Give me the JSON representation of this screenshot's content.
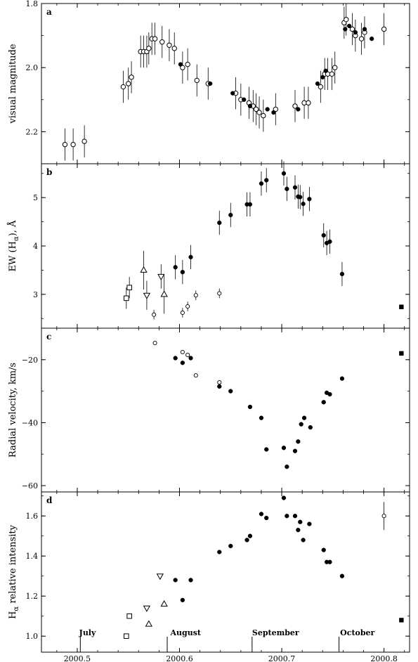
{
  "chart_data": [
    {
      "type": "scatter",
      "panel": "a",
      "ylabel": "visual magnitude",
      "ylim": [
        2.3,
        1.8
      ],
      "y_inverted": true,
      "yticks": [
        {
          "v": 1.8,
          "label": "1.8"
        },
        {
          "v": 2.0,
          "label": "2.0"
        },
        {
          "v": 2.2,
          "label": "2.2"
        }
      ],
      "series": [
        {
          "marker": "open-circle",
          "points": [
            [
              2000.488,
              2.24,
              0.05
            ],
            [
              2000.496,
              2.24,
              0.05
            ],
            [
              2000.507,
              2.23,
              0.05
            ],
            [
              2000.545,
              2.06,
              0.05
            ],
            [
              2000.55,
              2.05,
              0.05
            ],
            [
              2000.553,
              2.03,
              0.05
            ],
            [
              2000.562,
              1.95,
              0.05
            ],
            [
              2000.565,
              1.95,
              0.05
            ],
            [
              2000.568,
              1.95,
              0.05
            ],
            [
              2000.57,
              1.94,
              0.05
            ],
            [
              2000.573,
              1.91,
              0.05
            ],
            [
              2000.576,
              1.91,
              0.05
            ],
            [
              2000.583,
              1.92,
              0.05
            ],
            [
              2000.59,
              1.93,
              0.05
            ],
            [
              2000.595,
              1.94,
              0.05
            ],
            [
              2000.603,
              2.0,
              0.05
            ],
            [
              2000.608,
              1.99,
              0.05
            ],
            [
              2000.617,
              2.04,
              0.05
            ],
            [
              2000.628,
              2.05,
              0.05
            ],
            [
              2000.655,
              2.08,
              0.05
            ],
            [
              2000.66,
              2.1,
              0.05
            ],
            [
              2000.668,
              2.11,
              0.05
            ],
            [
              2000.672,
              2.12,
              0.05
            ],
            [
              2000.675,
              2.13,
              0.05
            ],
            [
              2000.678,
              2.14,
              0.05
            ],
            [
              2000.682,
              2.15,
              0.05
            ],
            [
              2000.694,
              2.13,
              0.05
            ],
            [
              2000.713,
              2.12,
              0.05
            ],
            [
              2000.722,
              2.11,
              0.05
            ],
            [
              2000.726,
              2.11,
              0.05
            ],
            [
              2000.738,
              2.06,
              0.05
            ],
            [
              2000.742,
              2.02,
              0.05
            ],
            [
              2000.745,
              2.02,
              0.05
            ],
            [
              2000.749,
              2.02,
              0.05
            ],
            [
              2000.752,
              2.0,
              0.05
            ],
            [
              2000.761,
              1.86,
              0.05
            ],
            [
              2000.763,
              1.85,
              0.05
            ],
            [
              2000.769,
              1.88,
              0.05
            ],
            [
              2000.772,
              1.9,
              0.05
            ],
            [
              2000.778,
              1.91,
              0.05
            ],
            [
              2000.781,
              1.89,
              0.05
            ],
            [
              2000.8,
              1.88,
              0.05
            ]
          ]
        },
        {
          "marker": "filled-circle",
          "points": [
            [
              2000.601,
              1.99
            ],
            [
              2000.63,
              2.05
            ],
            [
              2000.652,
              2.08
            ],
            [
              2000.663,
              2.1
            ],
            [
              2000.669,
              2.12
            ],
            [
              2000.686,
              2.13
            ],
            [
              2000.692,
              2.14
            ],
            [
              2000.716,
              2.13
            ],
            [
              2000.735,
              2.05
            ],
            [
              2000.74,
              2.03
            ],
            [
              2000.743,
              2.01
            ],
            [
              2000.762,
              1.88
            ],
            [
              2000.766,
              1.87
            ],
            [
              2000.772,
              1.89
            ],
            [
              2000.781,
              1.88
            ],
            [
              2000.788,
              1.91
            ]
          ]
        }
      ]
    },
    {
      "type": "scatter",
      "panel": "b",
      "ylabel": "EW (H",
      "ylabel_sub": "α",
      "ylabel_tail": "), Å",
      "ylim": [
        2.3,
        5.7
      ],
      "yticks": [
        {
          "v": 3,
          "label": "3"
        },
        {
          "v": 4,
          "label": "4"
        },
        {
          "v": 5,
          "label": "5"
        }
      ],
      "series": [
        {
          "marker": "open-square",
          "points": [
            [
              2000.548,
              2.92,
              0.22
            ],
            [
              2000.551,
              3.14,
              0.22
            ]
          ]
        },
        {
          "marker": "open-triangle-up",
          "points": [
            [
              2000.565,
              3.5,
              0.4
            ],
            [
              2000.585,
              3.0,
              0.4
            ]
          ]
        },
        {
          "marker": "open-triangle-down",
          "points": [
            [
              2000.568,
              2.98,
              0.3
            ],
            [
              2000.582,
              3.37,
              0.25
            ]
          ]
        },
        {
          "marker": "small-open-circle",
          "points": [
            [
              2000.575,
              2.58,
              0.1
            ],
            [
              2000.603,
              2.62,
              0.1
            ],
            [
              2000.608,
              2.75,
              0.1
            ],
            [
              2000.616,
              2.98,
              0.1
            ],
            [
              2000.639,
              3.02,
              0.1
            ]
          ]
        },
        {
          "marker": "filled-circle",
          "points": [
            [
              2000.596,
              3.56,
              0.25
            ],
            [
              2000.603,
              3.46,
              0.25
            ],
            [
              2000.611,
              3.77,
              0.25
            ],
            [
              2000.639,
              4.48,
              0.25
            ],
            [
              2000.65,
              4.64,
              0.25
            ],
            [
              2000.666,
              4.86,
              0.25
            ],
            [
              2000.669,
              4.86,
              0.25
            ],
            [
              2000.68,
              5.29,
              0.25
            ],
            [
              2000.685,
              5.36,
              0.25
            ],
            [
              2000.702,
              5.5,
              0.25
            ],
            [
              2000.705,
              5.18,
              0.25
            ],
            [
              2000.713,
              5.21,
              0.25
            ],
            [
              2000.716,
              5.02,
              0.25
            ],
            [
              2000.718,
              5.01,
              0.25
            ],
            [
              2000.721,
              4.87,
              0.25
            ],
            [
              2000.727,
              4.97,
              0.25
            ],
            [
              2000.741,
              4.22,
              0.25
            ],
            [
              2000.744,
              4.06,
              0.25
            ],
            [
              2000.747,
              4.09,
              0.25
            ],
            [
              2000.759,
              3.42,
              0.25
            ]
          ]
        },
        {
          "marker": "filled-square",
          "points": [
            [
              2000.817,
              2.74
            ]
          ]
        }
      ]
    },
    {
      "type": "scatter",
      "panel": "c",
      "ylabel": "Radial velocity, km/s",
      "ylim": [
        -62,
        -10
      ],
      "yticks": [
        {
          "v": -20,
          "label": "−20"
        },
        {
          "v": -40,
          "label": "−40"
        },
        {
          "v": -60,
          "label": "−60"
        }
      ],
      "series": [
        {
          "marker": "small-open-circle",
          "points": [
            [
              2000.576,
              -14.7
            ],
            [
              2000.603,
              -17.6
            ],
            [
              2000.608,
              -18.5
            ],
            [
              2000.616,
              -25.0
            ],
            [
              2000.639,
              -27.2
            ]
          ]
        },
        {
          "marker": "filled-circle",
          "points": [
            [
              2000.596,
              -19.5
            ],
            [
              2000.603,
              -21.0
            ],
            [
              2000.611,
              -19.5
            ],
            [
              2000.639,
              -28.5
            ],
            [
              2000.65,
              -30.0
            ],
            [
              2000.669,
              -35.0
            ],
            [
              2000.68,
              -38.5
            ],
            [
              2000.685,
              -48.5
            ],
            [
              2000.702,
              -48.0
            ],
            [
              2000.705,
              -54.0
            ],
            [
              2000.713,
              -49.0
            ],
            [
              2000.716,
              -46.0
            ],
            [
              2000.719,
              -40.5
            ],
            [
              2000.722,
              -38.5
            ],
            [
              2000.728,
              -41.5
            ],
            [
              2000.741,
              -33.5
            ],
            [
              2000.744,
              -30.5
            ],
            [
              2000.747,
              -31.0
            ],
            [
              2000.759,
              -26.0
            ]
          ]
        },
        {
          "marker": "filled-square",
          "points": [
            [
              2000.817,
              -18.0
            ]
          ]
        }
      ]
    },
    {
      "type": "scatter",
      "panel": "d",
      "ylabel": "H",
      "ylabel_sub": "α",
      "ylabel_tail": " relative intensity",
      "ylim": [
        0.92,
        1.72
      ],
      "yticks": [
        {
          "v": 1.0,
          "label": "1.0"
        },
        {
          "v": 1.2,
          "label": "1.2"
        },
        {
          "v": 1.4,
          "label": "1.4"
        },
        {
          "v": 1.6,
          "label": "1.6"
        }
      ],
      "xlim": [
        2000.465,
        2000.825
      ],
      "xticks": [
        {
          "v": 2000.5,
          "label": "2000.5"
        },
        {
          "v": 2000.6,
          "label": "2000.6"
        },
        {
          "v": 2000.7,
          "label": "2000.7"
        },
        {
          "v": 2000.8,
          "label": "2000.8"
        }
      ],
      "month_markers": [
        {
          "label": "July",
          "line": 2000.503,
          "text_x": 2000.51
        },
        {
          "label": "August",
          "line": 2000.588,
          "text_x": 2000.606
        },
        {
          "label": "September",
          "line": 2000.671,
          "text_x": 2000.694
        },
        {
          "label": "October",
          "line": 2000.756,
          "text_x": 2000.774
        }
      ],
      "series": [
        {
          "marker": "open-square",
          "points": [
            [
              2000.548,
              1.0
            ],
            [
              2000.551,
              1.1
            ]
          ]
        },
        {
          "marker": "open-triangle-up",
          "points": [
            [
              2000.57,
              1.06
            ],
            [
              2000.585,
              1.16
            ]
          ]
        },
        {
          "marker": "open-triangle-down",
          "points": [
            [
              2000.568,
              1.14
            ],
            [
              2000.581,
              1.3
            ]
          ]
        },
        {
          "marker": "filled-circle",
          "points": [
            [
              2000.596,
              1.28
            ],
            [
              2000.603,
              1.18
            ],
            [
              2000.611,
              1.28
            ],
            [
              2000.639,
              1.42
            ],
            [
              2000.65,
              1.45
            ],
            [
              2000.666,
              1.48
            ],
            [
              2000.669,
              1.5
            ],
            [
              2000.68,
              1.61
            ],
            [
              2000.685,
              1.59
            ],
            [
              2000.702,
              1.69
            ],
            [
              2000.705,
              1.6
            ],
            [
              2000.713,
              1.6
            ],
            [
              2000.716,
              1.53
            ],
            [
              2000.718,
              1.57
            ],
            [
              2000.721,
              1.48
            ],
            [
              2000.727,
              1.56
            ],
            [
              2000.741,
              1.43
            ],
            [
              2000.744,
              1.37
            ],
            [
              2000.747,
              1.37
            ],
            [
              2000.759,
              1.3
            ]
          ]
        },
        {
          "marker": "small-open-circle",
          "points": [
            [
              2000.8,
              1.6,
              0.07
            ]
          ]
        },
        {
          "marker": "filled-square",
          "points": [
            [
              2000.817,
              1.08
            ]
          ]
        }
      ]
    }
  ]
}
